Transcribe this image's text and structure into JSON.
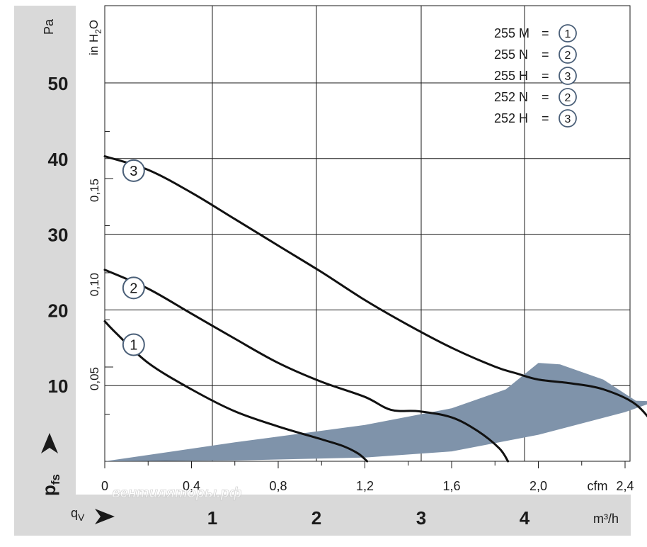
{
  "chart_data": {
    "type": "line",
    "title": "",
    "y_axis_left": {
      "unit": "Pa",
      "ticks": [
        "10",
        "20",
        "30",
        "40",
        "50"
      ],
      "range": [
        0,
        50
      ]
    },
    "y_axis_inner": {
      "unit_parts": [
        "in H",
        "2",
        "O"
      ],
      "ticks": [
        "0,05",
        "0,10",
        "0,15"
      ]
    },
    "y_symbol": {
      "base": "p",
      "sub": "fs"
    },
    "x_axis_cfm": {
      "unit": "cfm",
      "ticks": [
        "0",
        "0,4",
        "0,8",
        "1,2",
        "1,6",
        "2,0",
        "2,4"
      ],
      "range": [
        0,
        2.75
      ]
    },
    "x_axis_m3h": {
      "unit": "m³/h",
      "ticks": [
        "1",
        "2",
        "3",
        "4"
      ]
    },
    "x_symbol": {
      "base": "q",
      "sub": "V"
    },
    "legend": [
      {
        "name": "255 M",
        "marker": "1"
      },
      {
        "name": "255 N",
        "marker": "2"
      },
      {
        "name": "255 H",
        "marker": "3"
      },
      {
        "name": "252 N",
        "marker": "2"
      },
      {
        "name": "252 H",
        "marker": "3"
      }
    ],
    "series": [
      {
        "name": "1",
        "marker": "1",
        "cfm": [
          0,
          0.05,
          0.2,
          0.4,
          0.6,
          0.8,
          1.0,
          1.1,
          1.17,
          1.21
        ],
        "pa": [
          18.5,
          17.0,
          13.0,
          9.5,
          6.6,
          4.6,
          2.9,
          2.0,
          1.0,
          0
        ]
      },
      {
        "name": "2",
        "marker": "2",
        "cfm": [
          0,
          0.2,
          0.4,
          0.6,
          0.8,
          1.0,
          1.2,
          1.32,
          1.45,
          1.6,
          1.72,
          1.82,
          1.86
        ],
        "pa": [
          25.3,
          22.8,
          19.5,
          16.2,
          13.0,
          10.5,
          8.5,
          6.8,
          6.6,
          5.8,
          4.0,
          1.7,
          0
        ]
      },
      {
        "name": "3",
        "marker": "3",
        "cfm": [
          0,
          0.2,
          0.4,
          0.6,
          0.8,
          1.0,
          1.2,
          1.4,
          1.6,
          1.8,
          1.9,
          2.0,
          2.15,
          2.3,
          2.45,
          2.55,
          2.62
        ],
        "pa": [
          40.3,
          38.5,
          35.5,
          32.0,
          28.5,
          25.0,
          21.3,
          18.0,
          15.0,
          12.5,
          11.6,
          10.8,
          10.3,
          9.5,
          7.5,
          4.0,
          0
        ]
      }
    ],
    "operating_zone": {
      "upper": [
        [
          0,
          0
        ],
        [
          0.6,
          2.5
        ],
        [
          1.2,
          4.8
        ],
        [
          1.6,
          7.0
        ],
        [
          1.85,
          9.5
        ],
        [
          2.0,
          13.0
        ]
      ],
      "top": [
        [
          2.0,
          13.0
        ],
        [
          2.1,
          12.8
        ],
        [
          2.3,
          10.8
        ],
        [
          2.45,
          8.0
        ],
        [
          2.54,
          7.9
        ]
      ],
      "lower": [
        [
          2.54,
          7.9
        ],
        [
          2.4,
          6.5
        ],
        [
          2.0,
          3.5
        ],
        [
          1.6,
          1.3
        ],
        [
          1.2,
          0.5
        ],
        [
          0.6,
          0.1
        ],
        [
          0,
          0
        ]
      ],
      "color": "#7f93aa"
    },
    "grid": true,
    "legend_position": "top-right",
    "colors": {
      "curve": "#111111",
      "marker_stroke": "#4a5f78",
      "panel": "#d9d9d9",
      "zone": "#7f93aa"
    }
  },
  "watermark": "вентиляторы.рф"
}
